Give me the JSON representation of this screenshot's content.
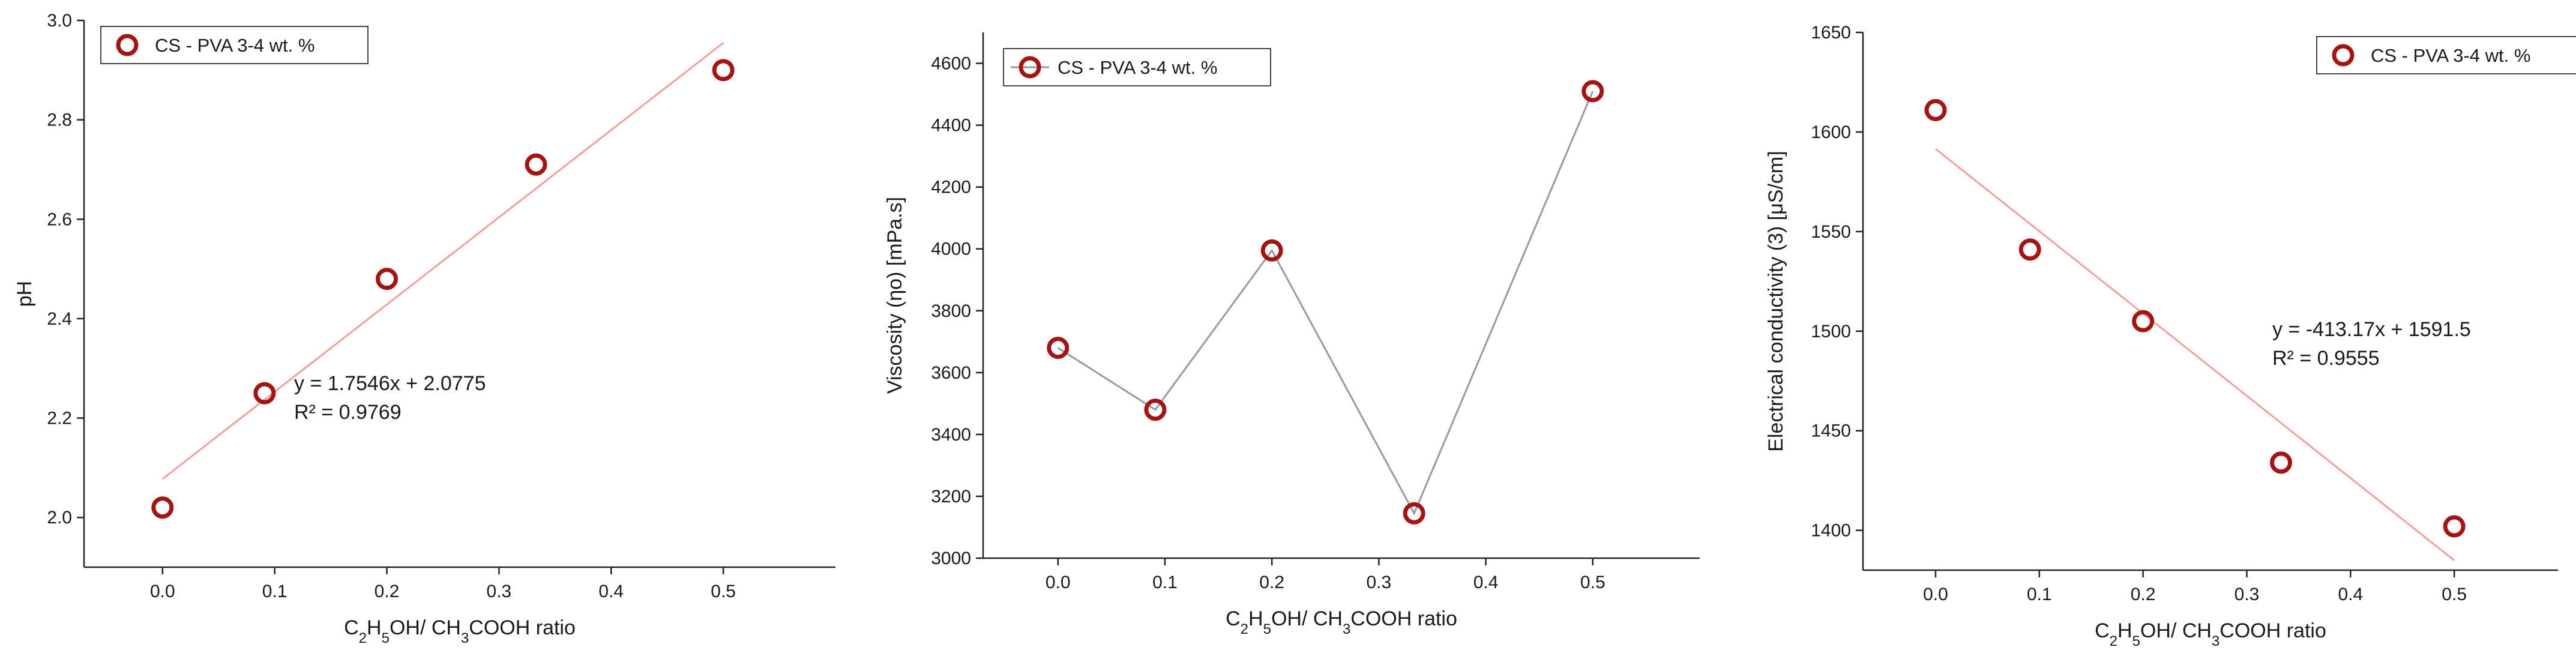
{
  "colors": {
    "marker": "#a31515",
    "fit": "#f4a09a",
    "connect": "#9a9a9a",
    "axis": "#222222"
  },
  "chart_data": [
    {
      "type": "scatter",
      "legend": "CS - PVA 3-4 wt. %",
      "legend_position": "top-left",
      "xlabel_parts": {
        "a": "C",
        "s1": "2",
        "b": "H",
        "s2": "5",
        "c": "OH/ CH",
        "s3": "3",
        "d": "COOH ratio"
      },
      "ylabel": "pH",
      "xlim": [
        -0.07,
        0.6
      ],
      "ylim": [
        1.9,
        3.0
      ],
      "xticks": [
        0.0,
        0.1,
        0.2,
        0.3,
        0.4,
        0.5
      ],
      "xtick_labels": [
        "0.0",
        "0.1",
        "0.2",
        "0.3",
        "0.4",
        "0.5"
      ],
      "yticks": [
        2.0,
        2.2,
        2.4,
        2.6,
        2.8,
        3.0
      ],
      "ytick_labels": [
        "2.0",
        "2.2",
        "2.4",
        "2.6",
        "2.8",
        "3.0"
      ],
      "x": [
        0.0,
        0.091,
        0.2,
        0.333,
        0.5
      ],
      "y": [
        2.02,
        2.25,
        2.48,
        2.71,
        2.9
      ],
      "connect": false,
      "fit": {
        "slope": 1.7546,
        "intercept": 2.0775,
        "x_range": [
          0.0,
          0.5
        ],
        "equation": "y = 1.7546x + 2.0775",
        "r2": "R² = 0.9769"
      }
    },
    {
      "type": "line",
      "legend": "CS - PVA 3-4 wt. %",
      "legend_position": "top-left",
      "xlabel_parts": {
        "a": "C",
        "s1": "2",
        "b": "H",
        "s2": "5",
        "c": "OH/ CH",
        "s3": "3",
        "d": "COOH ratio"
      },
      "ylabel": "Viscosity (ηο) [mPa.s]",
      "xlim": [
        -0.07,
        0.6
      ],
      "ylim": [
        3000,
        4700
      ],
      "xticks": [
        0.0,
        0.1,
        0.2,
        0.3,
        0.4,
        0.5
      ],
      "xtick_labels": [
        "0.0",
        "0.1",
        "0.2",
        "0.3",
        "0.4",
        "0.5"
      ],
      "yticks": [
        3000,
        3200,
        3400,
        3600,
        3800,
        4000,
        4200,
        4400,
        4600
      ],
      "ytick_labels": [
        "3000",
        "3200",
        "3400",
        "3600",
        "3800",
        "4000",
        "4200",
        "4400",
        "4600"
      ],
      "x": [
        0.0,
        0.091,
        0.2,
        0.333,
        0.5
      ],
      "y": [
        3680,
        3480,
        3995,
        3145,
        4510
      ],
      "connect": true,
      "fit": null
    },
    {
      "type": "scatter",
      "legend": "CS - PVA 3-4 wt. %",
      "legend_position": "top-right",
      "xlabel_parts": {
        "a": "C",
        "s1": "2",
        "b": "H",
        "s2": "5",
        "c": "OH/ CH",
        "s3": "3",
        "d": "COOH ratio"
      },
      "ylabel": "Electrical conductivity (3) [μS/cm]",
      "xlim": [
        -0.07,
        0.6
      ],
      "ylim": [
        1380,
        1650
      ],
      "xticks": [
        0.0,
        0.1,
        0.2,
        0.3,
        0.4,
        0.5
      ],
      "xtick_labels": [
        "0.0",
        "0.1",
        "0.2",
        "0.3",
        "0.4",
        "0.5"
      ],
      "yticks": [
        1400,
        1450,
        1500,
        1550,
        1600,
        1650
      ],
      "ytick_labels": [
        "1400",
        "1450",
        "1500",
        "1550",
        "1600",
        "1650"
      ],
      "x": [
        0.0,
        0.091,
        0.2,
        0.333,
        0.5
      ],
      "y": [
        1611,
        1541,
        1505,
        1434,
        1402
      ],
      "connect": false,
      "fit": {
        "slope": -413.17,
        "intercept": 1591.5,
        "x_range": [
          0.0,
          0.5
        ],
        "equation": "y = -413.17x + 1591.5",
        "r2": "R² = 0.9555"
      }
    }
  ]
}
